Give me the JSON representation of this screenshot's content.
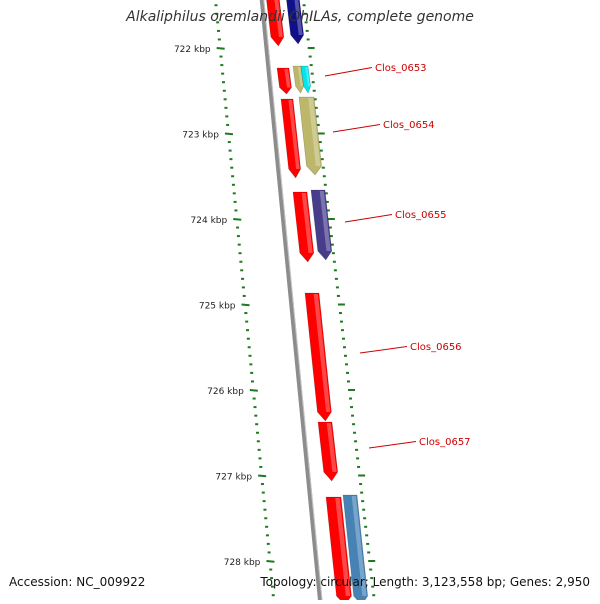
{
  "title": "Alkaliphilus oremlandii OhILAs, complete genome",
  "accession": "Accession: NC_009922",
  "topology": "Topology: circular; Length: 3,123,558 bp; Genes: 2,950",
  "colors": {
    "backbone": "#8c8c8c",
    "tick": "#1e7a1e",
    "label": "#cc0000",
    "gene_red": "#ff0000",
    "gene_navy": "#10108a",
    "gene_khaki": "#bdb76b",
    "gene_cyan": "#00e5ee",
    "gene_slate": "#483d8b",
    "gene_steel": "#4682b4"
  },
  "ticks": [
    {
      "kbp": 722,
      "label": "722 kbp"
    },
    {
      "kbp": 723,
      "label": "723 kbp"
    },
    {
      "kbp": 724,
      "label": "724 kbp"
    },
    {
      "kbp": 725,
      "label": "725 kbp"
    },
    {
      "kbp": 726,
      "label": "726 kbp"
    },
    {
      "kbp": 727,
      "label": "727 kbp"
    },
    {
      "kbp": 728,
      "label": "728 kbp"
    }
  ],
  "genes": [
    {
      "label": "Clos_0653",
      "label_y_kbp": 722.45
    },
    {
      "label": "Clos_0654",
      "label_y_kbp": 722.85
    },
    {
      "label": "Clos_0655",
      "label_y_kbp": 723.92
    },
    {
      "label": "Clos_0656",
      "label_y_kbp": 725.48
    },
    {
      "label": "Clos_0657",
      "label_y_kbp": 726.56
    }
  ]
}
